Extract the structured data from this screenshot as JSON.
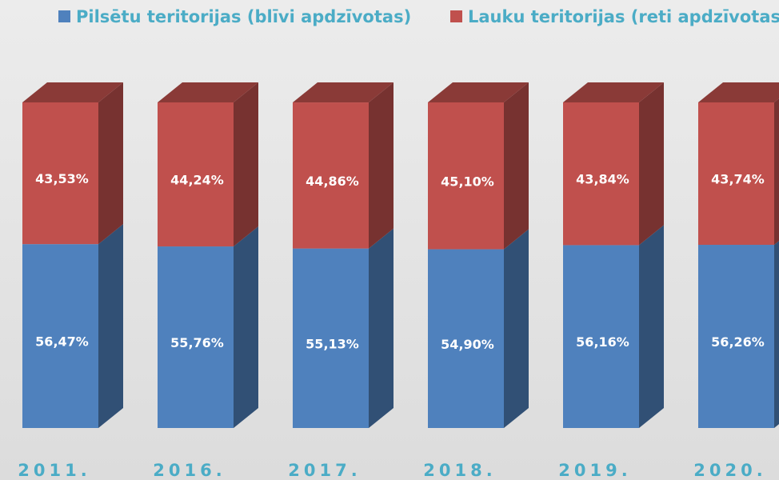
{
  "chart_data": {
    "type": "bar3d_stacked",
    "categories": [
      "2011.",
      "2016.",
      "2017.",
      "2018.",
      "2019.",
      "2020."
    ],
    "series": [
      {
        "name": "Pilsētu teritorijas (blīvi apdzīvotas)",
        "color": "#4f81bd",
        "values": [
          56.47,
          55.76,
          55.13,
          54.9,
          56.16,
          56.26
        ],
        "value_labels": [
          "56,47%",
          "55,76%",
          "55,13%",
          "54,90%",
          "56,16%",
          "56,26%"
        ]
      },
      {
        "name": "Lauku teritorijas (reti apdzīvotas)",
        "color": "#c0504d",
        "values": [
          43.53,
          44.24,
          44.86,
          45.1,
          43.84,
          43.74
        ],
        "value_labels": [
          "43,53%",
          "44,24%",
          "44,86%",
          "45,10%",
          "43,84%",
          "43,74%"
        ]
      }
    ]
  }
}
